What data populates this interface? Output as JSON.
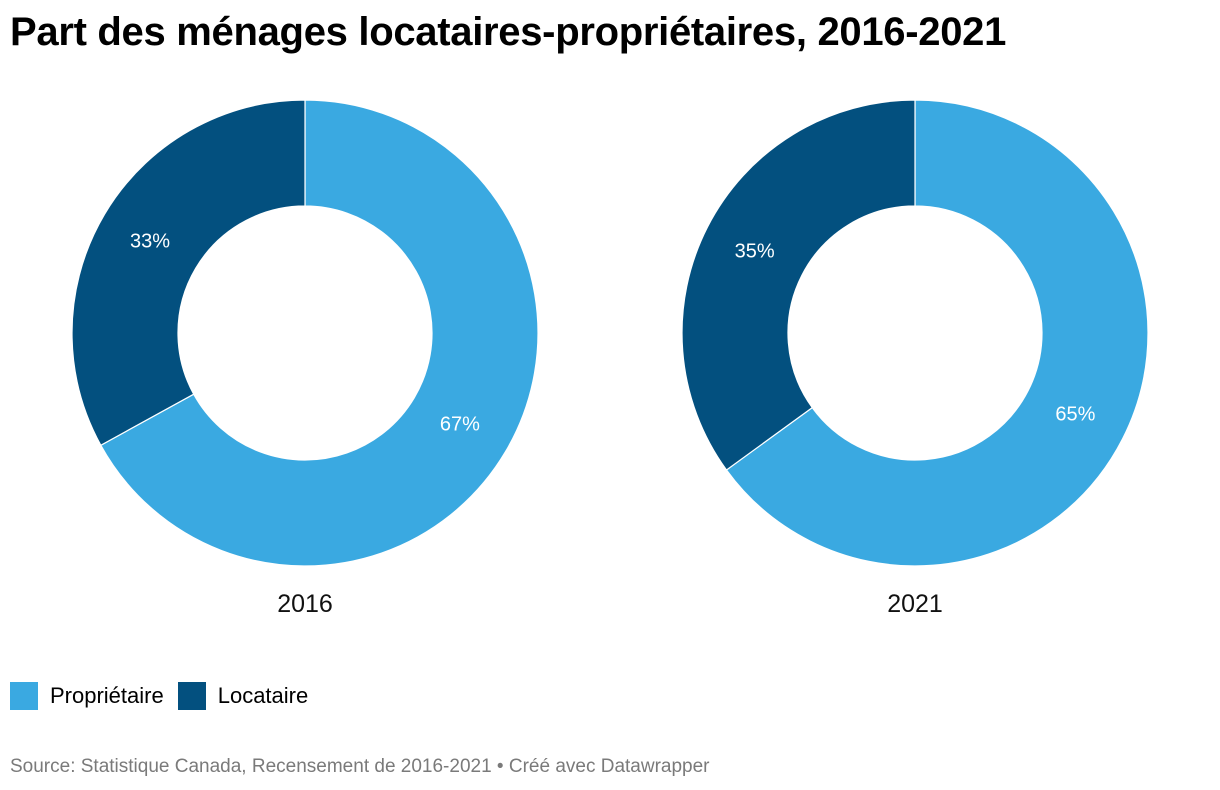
{
  "title": "Part des ménages locataires-propriétaires, 2016-2021",
  "chart_data": [
    {
      "type": "pie",
      "variant": "donut",
      "label": "2016",
      "slices": [
        {
          "name": "Propriétaire",
          "value": 67,
          "label": "67%"
        },
        {
          "name": "Locataire",
          "value": 33,
          "label": "33%"
        }
      ]
    },
    {
      "type": "pie",
      "variant": "donut",
      "label": "2021",
      "slices": [
        {
          "name": "Propriétaire",
          "value": 65,
          "label": "65%"
        },
        {
          "name": "Locataire",
          "value": 35,
          "label": "35%"
        }
      ]
    }
  ],
  "colors": {
    "Propriétaire": "#3aa9e1",
    "Locataire": "#03507f"
  },
  "legend": [
    {
      "name": "Propriétaire",
      "color": "#3aa9e1"
    },
    {
      "name": "Locataire",
      "color": "#03507f"
    }
  ],
  "source": "Source: Statistique Canada, Recensement de 2016-2021 • Créé avec Datawrapper"
}
